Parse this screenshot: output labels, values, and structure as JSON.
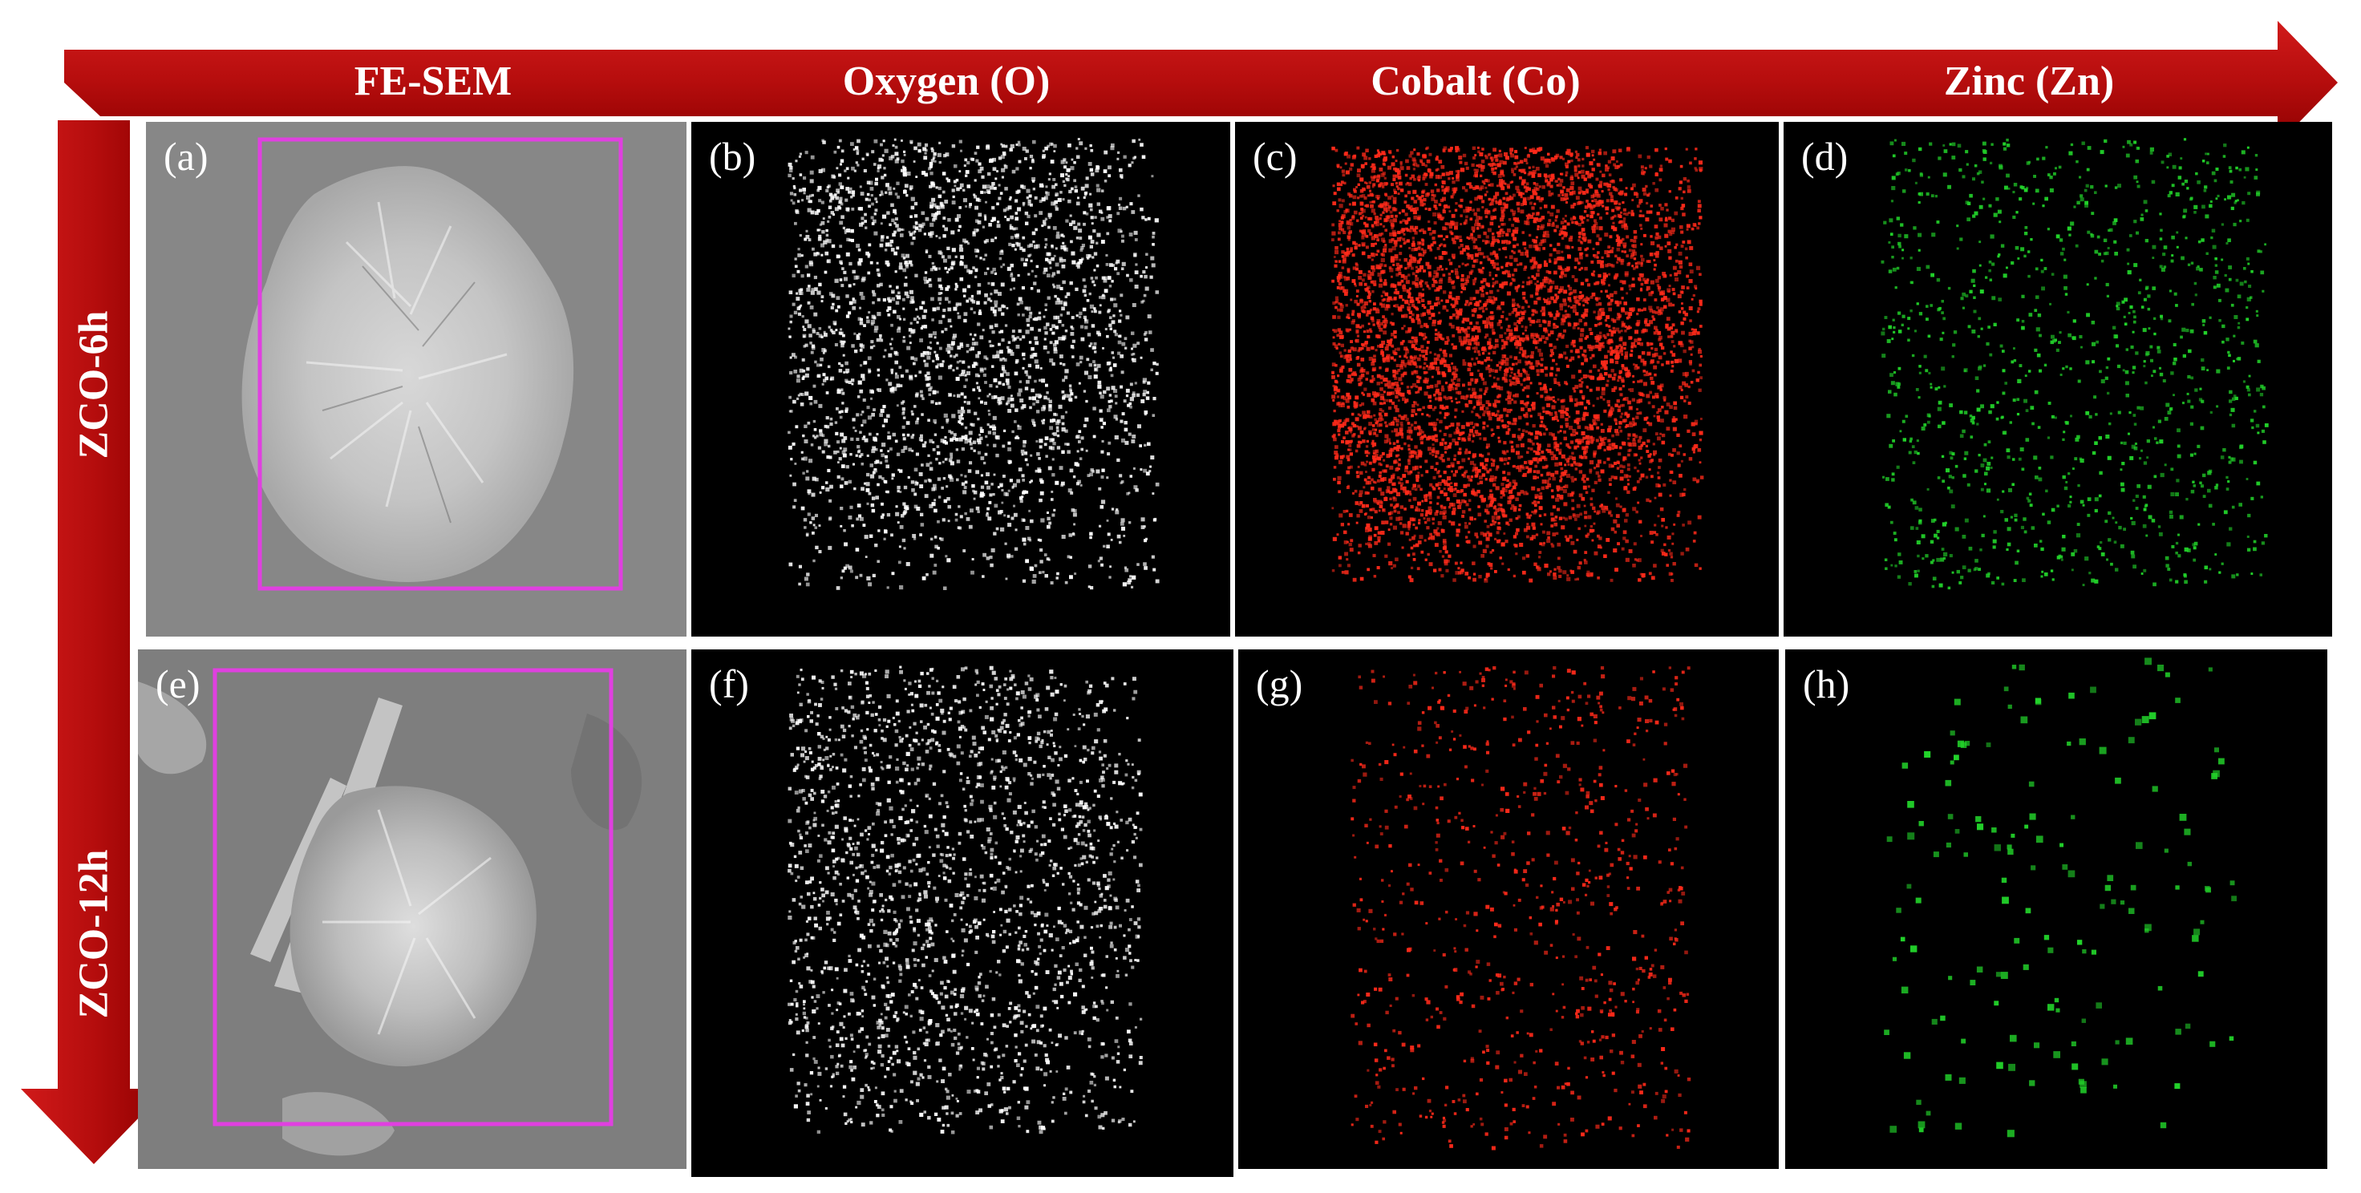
{
  "columns": [
    {
      "id": "fesem",
      "label": "FE-SEM"
    },
    {
      "id": "oxygen",
      "label": "Oxygen (O)"
    },
    {
      "id": "cobalt",
      "label": "Cobalt (Co)"
    },
    {
      "id": "zinc",
      "label": "Zinc (Zn)"
    }
  ],
  "rows": [
    {
      "id": "6h",
      "label": "ZCO-6h"
    },
    {
      "id": "12h",
      "label": "ZCO-12h"
    }
  ],
  "panels": [
    {
      "id": "a",
      "label": "(a)",
      "kind": "sem-image"
    },
    {
      "id": "b",
      "label": "(b)",
      "kind": "element-map",
      "element": "oxygen"
    },
    {
      "id": "c",
      "label": "(c)",
      "kind": "element-map",
      "element": "cobalt"
    },
    {
      "id": "d",
      "label": "(d)",
      "kind": "element-map",
      "element": "zinc"
    },
    {
      "id": "e",
      "label": "(e)",
      "kind": "sem-image"
    },
    {
      "id": "f",
      "label": "(f)",
      "kind": "element-map",
      "element": "oxygen"
    },
    {
      "id": "g",
      "label": "(g)",
      "kind": "element-map",
      "element": "cobalt"
    },
    {
      "id": "h",
      "label": "(h)",
      "kind": "element-map",
      "element": "zinc"
    }
  ],
  "colors": {
    "arrow": "#b50d0d",
    "arrow_edge": "#8e0000",
    "selection_box": "#e040e0",
    "oxygen_dots": "#ffffff",
    "cobalt_dots": "#ff2a1a",
    "zinc_dots": "#22d32a",
    "sem_background": "#8a8a8a",
    "map_background": "#000000"
  }
}
